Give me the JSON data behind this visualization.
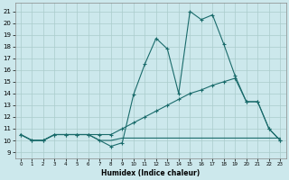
{
  "xlabel": "Humidex (Indice chaleur)",
  "bg_color": "#cce8ec",
  "grid_color": "#aacccc",
  "line_color": "#1a6b6b",
  "xlim": [
    -0.5,
    23.5
  ],
  "ylim": [
    8.5,
    21.7
  ],
  "xticks": [
    0,
    1,
    2,
    3,
    4,
    5,
    6,
    7,
    8,
    9,
    10,
    11,
    12,
    13,
    14,
    15,
    16,
    17,
    18,
    19,
    20,
    21,
    22,
    23
  ],
  "yticks": [
    9,
    10,
    11,
    12,
    13,
    14,
    15,
    16,
    17,
    18,
    19,
    20,
    21
  ],
  "series_max": [
    10.5,
    10.0,
    10.0,
    10.5,
    10.5,
    10.5,
    10.5,
    10.0,
    9.5,
    9.8,
    13.9,
    16.5,
    18.7,
    17.8,
    14.0,
    21.0,
    20.3,
    20.7,
    18.2,
    15.5,
    13.3,
    13.3,
    11.0,
    10.0
  ],
  "series_avg": [
    10.5,
    10.0,
    10.0,
    10.5,
    10.5,
    10.5,
    10.5,
    10.5,
    10.5,
    11.0,
    11.5,
    12.0,
    12.5,
    13.0,
    13.5,
    14.0,
    14.3,
    14.7,
    15.0,
    15.3,
    13.3,
    13.3,
    11.0,
    10.0
  ],
  "series_min": [
    10.5,
    10.0,
    10.0,
    10.5,
    10.5,
    10.5,
    10.5,
    10.0,
    10.0,
    10.2,
    10.2,
    10.2,
    10.2,
    10.2,
    10.2,
    10.2,
    10.2,
    10.2,
    10.2,
    10.2,
    10.2,
    10.2,
    10.2,
    10.2
  ]
}
